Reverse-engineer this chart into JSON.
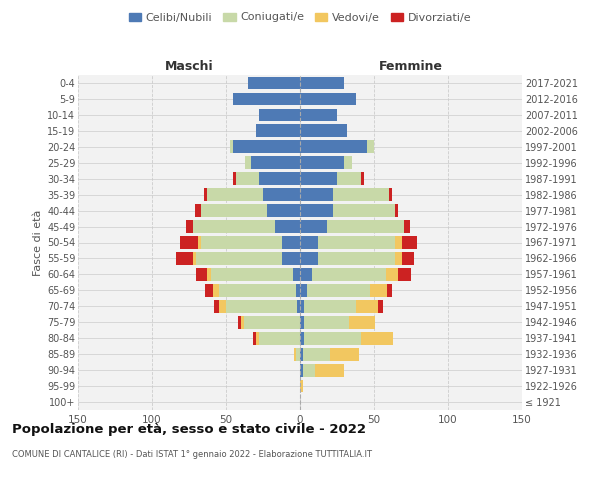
{
  "age_groups": [
    "100+",
    "95-99",
    "90-94",
    "85-89",
    "80-84",
    "75-79",
    "70-74",
    "65-69",
    "60-64",
    "55-59",
    "50-54",
    "45-49",
    "40-44",
    "35-39",
    "30-34",
    "25-29",
    "20-24",
    "15-19",
    "10-14",
    "5-9",
    "0-4"
  ],
  "birth_years": [
    "≤ 1921",
    "1922-1926",
    "1927-1931",
    "1932-1936",
    "1937-1941",
    "1942-1946",
    "1947-1951",
    "1952-1956",
    "1957-1961",
    "1962-1966",
    "1967-1971",
    "1972-1976",
    "1977-1981",
    "1982-1986",
    "1987-1991",
    "1992-1996",
    "1997-2001",
    "2002-2006",
    "2007-2011",
    "2012-2016",
    "2017-2021"
  ],
  "maschi_celibe": [
    0,
    0,
    0,
    0,
    0,
    0,
    2,
    3,
    5,
    12,
    12,
    17,
    22,
    25,
    28,
    33,
    45,
    30,
    28,
    45,
    35
  ],
  "maschi_coniugato": [
    0,
    0,
    0,
    3,
    28,
    38,
    48,
    52,
    55,
    58,
    55,
    55,
    45,
    38,
    15,
    4,
    2,
    0,
    0,
    0,
    0
  ],
  "maschi_vedovo": [
    0,
    0,
    0,
    1,
    2,
    2,
    5,
    4,
    3,
    2,
    2,
    0,
    0,
    0,
    0,
    0,
    0,
    0,
    0,
    0,
    0
  ],
  "maschi_divorziato": [
    0,
    0,
    0,
    0,
    2,
    2,
    3,
    5,
    7,
    12,
    12,
    5,
    4,
    2,
    2,
    0,
    0,
    0,
    0,
    0,
    0
  ],
  "femmine_celibe": [
    0,
    0,
    2,
    2,
    3,
    3,
    3,
    5,
    8,
    12,
    12,
    18,
    22,
    22,
    25,
    30,
    45,
    32,
    25,
    38,
    30
  ],
  "femmine_coniugato": [
    0,
    0,
    8,
    18,
    38,
    30,
    35,
    42,
    50,
    52,
    52,
    52,
    42,
    38,
    16,
    5,
    5,
    0,
    0,
    0,
    0
  ],
  "femmine_vedovo": [
    0,
    2,
    20,
    20,
    22,
    18,
    15,
    12,
    8,
    5,
    5,
    0,
    0,
    0,
    0,
    0,
    0,
    0,
    0,
    0,
    0
  ],
  "femmine_divorziato": [
    0,
    0,
    0,
    0,
    0,
    0,
    3,
    3,
    9,
    8,
    10,
    4,
    2,
    2,
    2,
    0,
    0,
    0,
    0,
    0,
    0
  ],
  "color_celibe": "#4e7ab5",
  "color_coniugato": "#c8d9a8",
  "color_vedovo": "#f2c760",
  "color_divorziato": "#cc2222",
  "xlim": 150,
  "xticks": [
    -150,
    -100,
    -50,
    0,
    50,
    100,
    150
  ],
  "title": "Popolazione per età, sesso e stato civile - 2022",
  "subtitle": "COMUNE DI CANTALICE (RI) - Dati ISTAT 1° gennaio 2022 - Elaborazione TUTTITALIA.IT",
  "ylabel_left": "Fasce di età",
  "label_maschi": "Maschi",
  "label_femmine": "Femmine",
  "legend_labels": [
    "Celibi/Nubili",
    "Coniugati/e",
    "Vedovi/e",
    "Divorziati/e"
  ],
  "bg_color": "#ffffff",
  "panel_bg": "#f2f2f2",
  "grid_color": "#cccccc",
  "text_color": "#555555",
  "title_color": "#111111"
}
